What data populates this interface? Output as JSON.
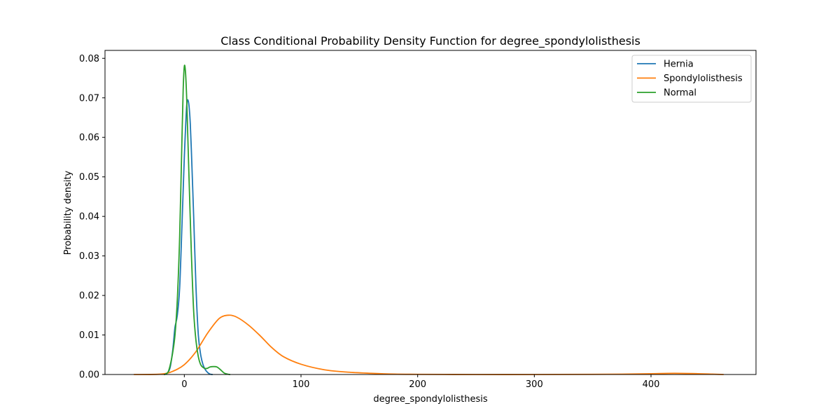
{
  "chart_data": {
    "type": "line",
    "title": "Class Conditional Probability Density Function for degree_spondylolisthesis",
    "xlabel": "degree_spondylolisthesis",
    "ylabel": "Probability density",
    "xlim": [
      -68,
      490
    ],
    "ylim": [
      0,
      0.082
    ],
    "xticks": [
      0,
      100,
      200,
      300,
      400
    ],
    "yticks": [
      0.0,
      0.01,
      0.02,
      0.03,
      0.04,
      0.05,
      0.06,
      0.07,
      0.08
    ],
    "ytick_labels": [
      "0.00",
      "0.01",
      "0.02",
      "0.03",
      "0.04",
      "0.05",
      "0.06",
      "0.07",
      "0.08"
    ],
    "grid": false,
    "legend_position": "top-right",
    "series": [
      {
        "name": "Hernia",
        "color": "#1f77b4",
        "x": [
          -17,
          -14,
          -12,
          -10,
          -9,
          -8,
          -6,
          -4,
          -2,
          0,
          1,
          2,
          3,
          4,
          5,
          6,
          8,
          10,
          12,
          14,
          16,
          18,
          20,
          22,
          24
        ],
        "y": [
          0.0,
          0.0005,
          0.002,
          0.006,
          0.009,
          0.012,
          0.015,
          0.022,
          0.038,
          0.055,
          0.062,
          0.068,
          0.0695,
          0.068,
          0.064,
          0.057,
          0.04,
          0.022,
          0.01,
          0.005,
          0.0025,
          0.0012,
          0.0005,
          0.0001,
          0.0
        ]
      },
      {
        "name": "Spondylolisthesis",
        "color": "#ff7f0e",
        "x": [
          -43,
          -20,
          -10,
          0,
          10,
          20,
          30,
          38,
          45,
          55,
          65,
          75,
          85,
          100,
          120,
          140,
          160,
          180,
          200,
          250,
          300,
          350,
          380,
          400,
          420,
          440,
          462
        ],
        "y": [
          0.0,
          0.0001,
          0.0008,
          0.0025,
          0.0058,
          0.0105,
          0.0142,
          0.015,
          0.0145,
          0.0125,
          0.0098,
          0.0068,
          0.0045,
          0.0026,
          0.0012,
          0.0006,
          0.0003,
          0.0001,
          5e-05,
          0.0,
          0.0,
          5e-05,
          0.0001,
          0.0002,
          0.0003,
          0.0002,
          0.0
        ]
      },
      {
        "name": "Normal",
        "color": "#2ca02c",
        "x": [
          -17,
          -14,
          -12,
          -10,
          -8,
          -6,
          -4,
          -2,
          -1,
          0,
          1,
          2,
          3,
          4,
          6,
          8,
          10,
          12,
          14,
          16,
          18,
          20,
          22,
          25,
          28,
          31,
          34,
          37,
          39
        ],
        "y": [
          0.0,
          0.0006,
          0.0025,
          0.0055,
          0.01,
          0.019,
          0.035,
          0.06,
          0.072,
          0.078,
          0.0765,
          0.07,
          0.06,
          0.05,
          0.031,
          0.016,
          0.0085,
          0.0045,
          0.0025,
          0.0018,
          0.0015,
          0.0016,
          0.0019,
          0.002,
          0.0019,
          0.0012,
          0.0004,
          0.0001,
          0.0
        ]
      }
    ]
  }
}
